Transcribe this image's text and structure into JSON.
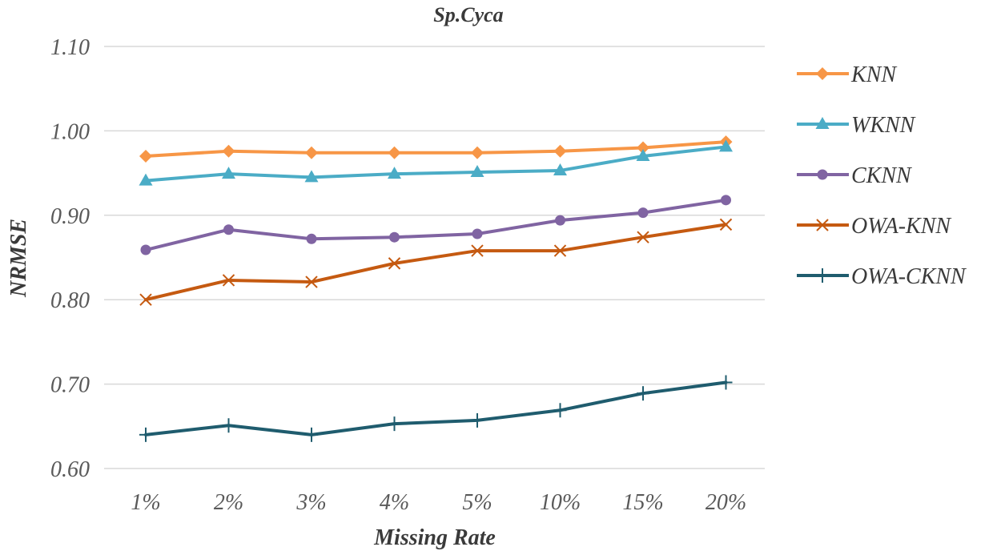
{
  "chart_data": {
    "type": "line",
    "title": "Sp.Cyca",
    "xlabel": "Missing Rate",
    "ylabel": "NRMSE",
    "categories": [
      "1%",
      "2%",
      "3%",
      "4%",
      "5%",
      "10%",
      "15%",
      "20%"
    ],
    "ylim": [
      0.6,
      1.1
    ],
    "yticks": [
      "0.60",
      "0.70",
      "0.80",
      "0.90",
      "1.00",
      "1.10"
    ],
    "grid": true,
    "legend_position": "right",
    "series": [
      {
        "name": "KNN",
        "color": "#F79646",
        "marker": "diamond",
        "values": [
          0.97,
          0.976,
          0.974,
          0.974,
          0.974,
          0.976,
          0.98,
          0.987
        ]
      },
      {
        "name": "WKNN",
        "color": "#4BACC6",
        "marker": "triangle",
        "values": [
          0.941,
          0.949,
          0.945,
          0.949,
          0.951,
          0.953,
          0.97,
          0.981
        ]
      },
      {
        "name": "CKNN",
        "color": "#8064A2",
        "marker": "circle",
        "values": [
          0.859,
          0.883,
          0.872,
          0.874,
          0.878,
          0.894,
          0.903,
          0.918
        ]
      },
      {
        "name": "OWA-KNN",
        "color": "#C55A11",
        "marker": "x",
        "values": [
          0.8,
          0.823,
          0.821,
          0.843,
          0.858,
          0.858,
          0.874,
          0.889
        ]
      },
      {
        "name": "OWA-CKNN",
        "color": "#1F5C6E",
        "marker": "plus",
        "values": [
          0.64,
          0.651,
          0.64,
          0.653,
          0.657,
          0.669,
          0.689,
          0.702
        ]
      }
    ]
  }
}
